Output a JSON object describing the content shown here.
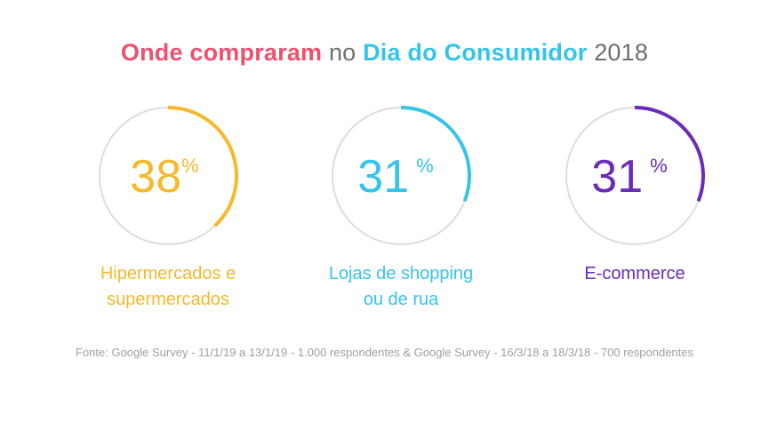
{
  "title": {
    "part1": "Onde compraram",
    "part2": " no ",
    "part3": "Dia do Consumidor",
    "part4": " 2018",
    "color_part1": "#f0506e",
    "color_part3": "#35c4e9"
  },
  "chart_data": {
    "type": "pie",
    "chart_style": "donut-progress",
    "items": [
      {
        "label": "Hipermercados e\nsupermercados",
        "value": 38,
        "unit": "%",
        "color": "#f6b92b"
      },
      {
        "label": "Lojas de shopping\nou de rua",
        "value": 31,
        "unit": "%",
        "color": "#35c4e9"
      },
      {
        "label": "E-commerce",
        "value": 31,
        "unit": "%",
        "color": "#6a2bb8"
      }
    ],
    "track_color": "#dddddd"
  },
  "source": "Fonte: Google Survey - 11/1/19 a 13/1/19 - 1.000 respondentes & Google Survey - 16/3/18 a 18/3/18 - 700 respondentes"
}
